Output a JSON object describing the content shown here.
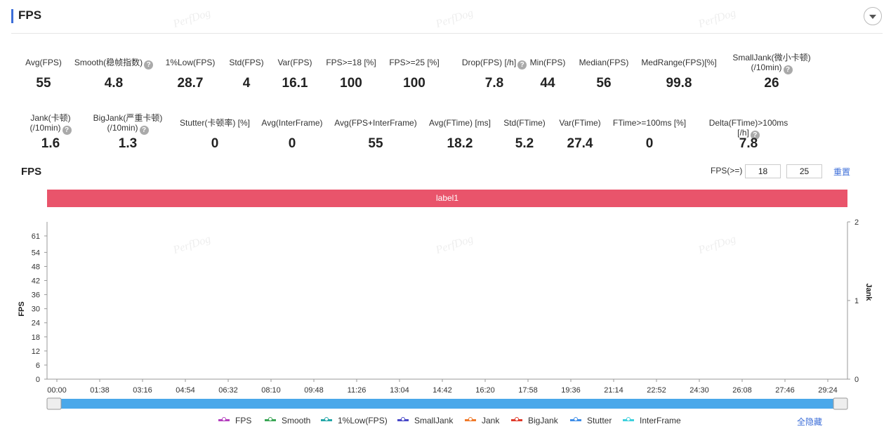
{
  "header": {
    "title": "FPS"
  },
  "watermark": "PerfDog",
  "stats_row1": [
    {
      "label": "Avg(FPS)",
      "value": "55",
      "help": false
    },
    {
      "label": "Smooth(稳帧指数)",
      "value": "4.8",
      "help": true
    },
    {
      "label": "1%Low(FPS)",
      "value": "28.7",
      "help": false
    },
    {
      "label": "Std(FPS)",
      "value": "4",
      "help": false
    },
    {
      "label": "Var(FPS)",
      "value": "16.1",
      "help": false
    },
    {
      "label": "FPS>=18 [%]",
      "value": "100",
      "help": false
    },
    {
      "label": "FPS>=25 [%]",
      "value": "100",
      "help": false
    },
    {
      "label": "Drop(FPS) [/h]",
      "value": "7.8",
      "help": true
    },
    {
      "label": "Min(FPS)",
      "value": "44",
      "help": false
    },
    {
      "label": "Median(FPS)",
      "value": "56",
      "help": false
    },
    {
      "label": "MedRange(FPS)[%]",
      "value": "99.8",
      "help": false
    },
    {
      "label": "SmallJank(微小卡顿)",
      "label2": "(/10min)",
      "value": "26",
      "help": true
    }
  ],
  "stats_row2": [
    {
      "label": "Jank(卡顿)",
      "label2": "(/10min)",
      "value": "1.6",
      "help": true
    },
    {
      "label": "BigJank(严重卡顿)",
      "label2": "(/10min)",
      "value": "1.3",
      "help": true
    },
    {
      "label": "Stutter(卡顿率) [%]",
      "value": "0",
      "help": false
    },
    {
      "label": "Avg(InterFrame)",
      "value": "0",
      "help": false
    },
    {
      "label": "Avg(FPS+InterFrame)",
      "value": "55",
      "help": false
    },
    {
      "label": "Avg(FTime) [ms]",
      "value": "18.2",
      "help": false
    },
    {
      "label": "Std(FTime)",
      "value": "5.2",
      "help": false
    },
    {
      "label": "Var(FTime)",
      "value": "27.4",
      "help": false
    },
    {
      "label": "FTime>=100ms [%]",
      "value": "0",
      "help": false
    },
    {
      "label": "Delta(FTime)>100ms [/h]",
      "value": "7.8",
      "help": true
    }
  ],
  "chart_header": {
    "title": "FPS",
    "threshold_label": "FPS(>=)",
    "threshold_1": "18",
    "threshold_2": "25",
    "reset": "重置"
  },
  "label_band": "label1",
  "chart_data": {
    "type": "line",
    "y_left_label": "FPS",
    "y_left_ticks": [
      "0",
      "6",
      "12",
      "18",
      "24",
      "30",
      "36",
      "42",
      "48",
      "54",
      "61"
    ],
    "y_right_label": "Jank",
    "y_right_ticks": [
      "0",
      "1",
      "2"
    ],
    "x_ticks": [
      "00:00",
      "01:38",
      "03:16",
      "04:54",
      "06:32",
      "08:10",
      "09:48",
      "11:26",
      "13:04",
      "14:42",
      "16:20",
      "17:58",
      "19:36",
      "21:14",
      "22:52",
      "24:30",
      "26:08",
      "27:46",
      "29:24"
    ],
    "series": [
      {
        "name": "FPS",
        "color": "#b43fbe"
      },
      {
        "name": "Smooth",
        "color": "#3aa655"
      },
      {
        "name": "1%Low(FPS)",
        "color": "#24a7a8"
      },
      {
        "name": "SmallJank",
        "color": "#4848c8"
      },
      {
        "name": "Jank",
        "color": "#f07a2a"
      },
      {
        "name": "BigJank",
        "color": "#e03b2b"
      },
      {
        "name": "Stutter",
        "color": "#3f8ee8"
      },
      {
        "name": "InterFrame",
        "color": "#3fd0dc"
      }
    ]
  },
  "legend": {
    "hide_all": "全隐藏"
  }
}
